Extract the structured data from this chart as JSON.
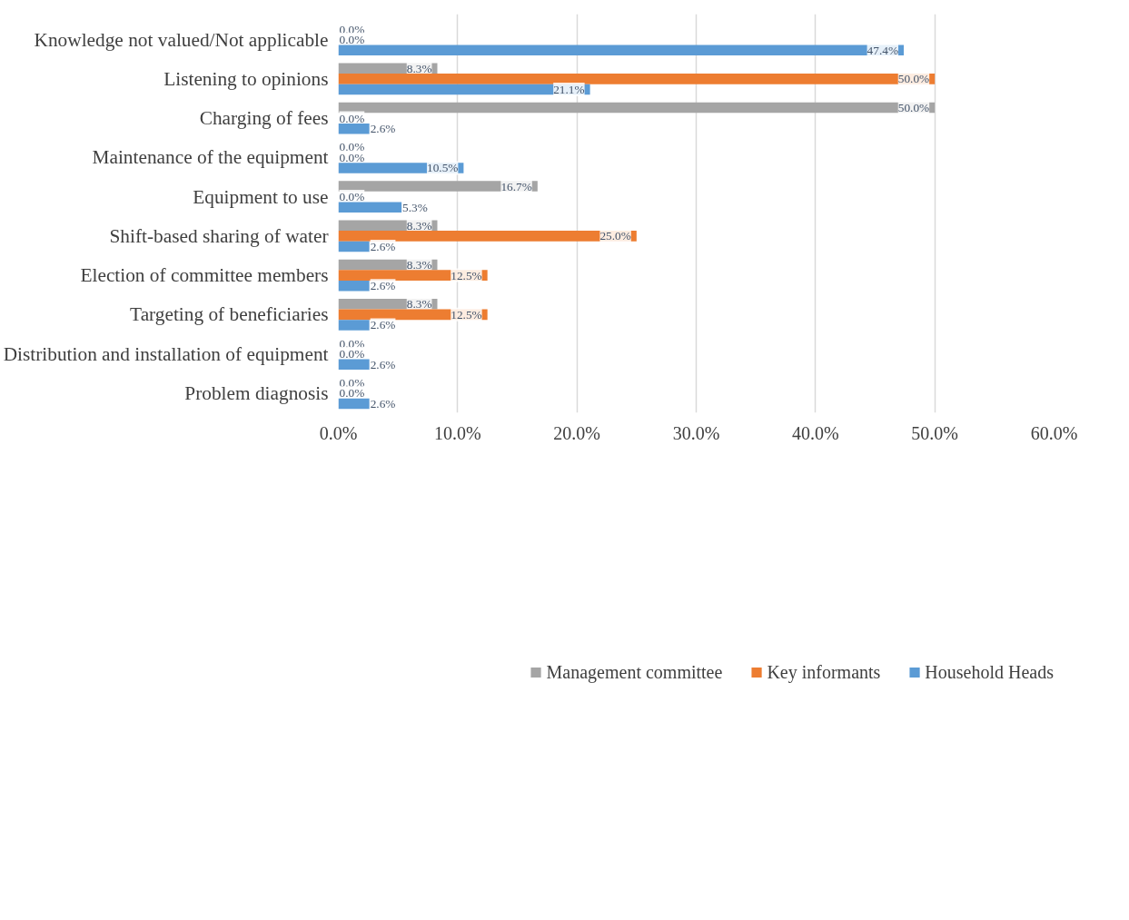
{
  "chart_data": {
    "type": "bar",
    "orientation": "horizontal",
    "categories": [
      "Knowledge not valued/Not applicable",
      "Listening to opinions",
      "Charging of fees",
      "Maintenance of the equipment",
      "Equipment to use",
      "Shift-based sharing of water",
      "Election of committee members",
      "Targeting of beneficiaries",
      "Distribution and installation of equipment",
      "Problem diagnosis"
    ],
    "series": [
      {
        "name": "Management committee",
        "color": "#a5a5a5",
        "values": [
          0,
          8.3,
          50,
          0,
          16.7,
          8.3,
          8.3,
          8.3,
          0,
          0
        ],
        "value_labels": [
          "0.0%",
          "8.3%",
          "50.0%",
          "0.0%",
          "16.7%",
          "8.3%",
          "8.3%",
          "8.3%",
          "0.0%",
          "0.0%"
        ]
      },
      {
        "name": "Key informants",
        "color": "#ed7d31",
        "values": [
          0,
          50,
          0,
          0,
          0,
          25,
          12.5,
          12.5,
          0,
          0
        ],
        "value_labels": [
          "0.0%",
          "50.0%",
          "0.0%",
          "0.0%",
          "0.0%",
          "25.0%",
          "12.5%",
          "12.5%",
          "0.0%",
          "0.0%"
        ]
      },
      {
        "name": "Household Heads",
        "color": "#5b9bd5",
        "values": [
          47.4,
          21.1,
          2.6,
          10.5,
          5.3,
          2.6,
          2.6,
          2.6,
          2.6,
          2.6
        ],
        "value_labels": [
          "47.4%",
          "21.1%",
          "2.6%",
          "10.5%",
          "5.3%",
          "2.6%",
          "2.6%",
          "2.6%",
          "2.6%",
          "2.6%"
        ]
      }
    ],
    "xlim": [
      0,
      60
    ],
    "xticks": [
      {
        "value": 0,
        "label": "0.0%"
      },
      {
        "value": 10,
        "label": "10.0%"
      },
      {
        "value": 20,
        "label": "20.0%"
      },
      {
        "value": 30,
        "label": "30.0%"
      },
      {
        "value": 40,
        "label": "40.0%"
      },
      {
        "value": 50,
        "label": "50.0%"
      },
      {
        "value": 60,
        "label": "60.0%"
      }
    ],
    "grid": "x",
    "legend": "bottom"
  }
}
